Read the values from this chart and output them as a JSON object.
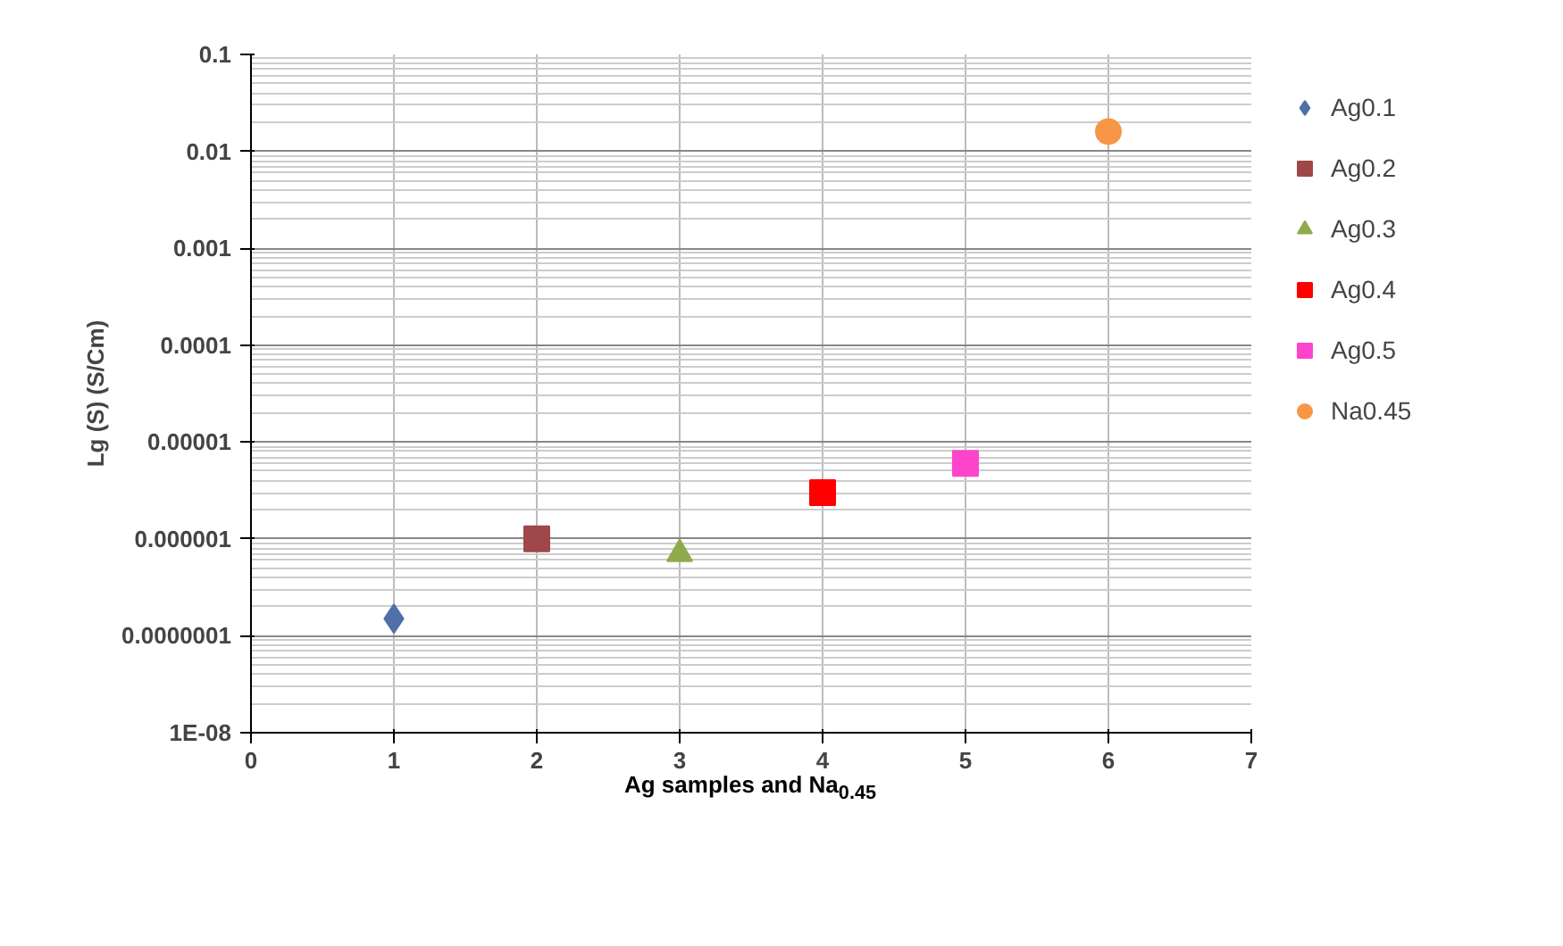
{
  "chart_data": {
    "type": "scatter",
    "xlabel": "Ag samples and Na$_{0.45}$",
    "ylabel": "Lg (S) (S/Cm)",
    "log": "y",
    "xlim": [
      0,
      7
    ],
    "xticks": [
      0,
      1,
      2,
      3,
      4,
      5,
      6,
      7
    ],
    "ylim": [
      1e-08,
      0.1
    ],
    "yticks": [
      {
        "value": 1e-08,
        "label": "1E-08"
      },
      {
        "value": 1e-07,
        "label": "0.0000001"
      },
      {
        "value": 1e-06,
        "label": "0.000001"
      },
      {
        "value": 1e-05,
        "label": "0.00001"
      },
      {
        "value": 0.0001,
        "label": "0.0001"
      },
      {
        "value": 0.001,
        "label": "0.001"
      },
      {
        "value": 0.01,
        "label": "0.01"
      },
      {
        "value": 0.1,
        "label": "0.1"
      }
    ],
    "grid": true,
    "legend": "right",
    "series": [
      {
        "name": "Ag0.1",
        "color": "#4f6fa8",
        "marker": "diamond",
        "x": [
          1
        ],
        "values": [
          1.5e-07
        ]
      },
      {
        "name": "Ag0.2",
        "color": "#a0474a",
        "marker": "square",
        "x": [
          2
        ],
        "values": [
          1e-06
        ]
      },
      {
        "name": "Ag0.3",
        "color": "#8faa4c",
        "marker": "triangle",
        "x": [
          3
        ],
        "values": [
          7e-07
        ]
      },
      {
        "name": "Ag0.4",
        "color": "#ff0000",
        "marker": "square",
        "x": [
          4
        ],
        "values": [
          3e-06
        ]
      },
      {
        "name": "Ag0.5",
        "color": "#ff44cc",
        "marker": "square",
        "x": [
          5
        ],
        "values": [
          6e-06
        ]
      },
      {
        "name": "Na0.45",
        "color": "#f79646",
        "marker": "circle",
        "x": [
          6
        ],
        "values": [
          0.016
        ]
      }
    ]
  }
}
